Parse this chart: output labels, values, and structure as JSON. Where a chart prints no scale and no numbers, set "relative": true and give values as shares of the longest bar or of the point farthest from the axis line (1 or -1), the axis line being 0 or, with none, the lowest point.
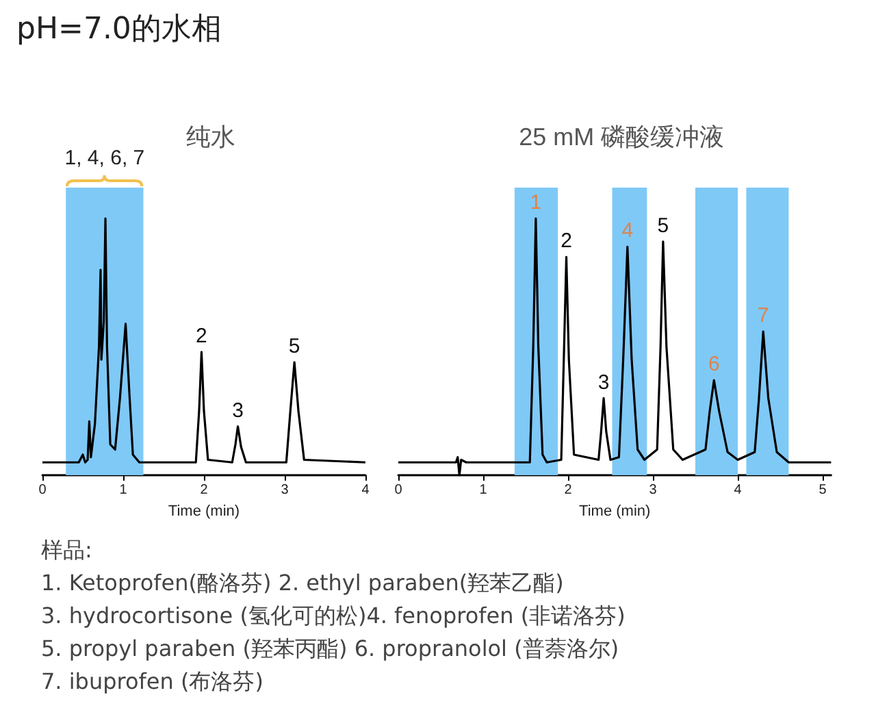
{
  "chart_data": [
    {
      "type": "other",
      "title": "pH=7.0的水相",
      "annotations": [
        "样品:",
        "1. Ketoprofen(酪洛芬) 2. ethyl paraben(羟苯乙酯)",
        "3. hydrocortisone (氢化可的松)4. fenoprofen (非诺洛芬)",
        "5. propyl paraben (羟苯丙酯) 6. propranolol (普萘洛尔)",
        "7. ibuprofen (布洛芬)"
      ]
    },
    {
      "type": "line",
      "title": "纯水",
      "xlabel": "Time (min)",
      "relative": true,
      "xlim": [
        0,
        4
      ],
      "xticks": [
        0,
        1,
        2,
        3,
        4
      ],
      "tick_labels": "x",
      "marker": "none",
      "series": [
        {
          "color": "#000000",
          "x": [
            0,
            0.45,
            0.5,
            0.53,
            0.56,
            0.58,
            0.6,
            0.65,
            0.7,
            0.72,
            0.73,
            0.76,
            0.78,
            0.8,
            0.84,
            0.9,
            0.96,
            1.03,
            1.08,
            1.12,
            1.2,
            1.9,
            1.94,
            1.97,
            2.0,
            2.05,
            2.35,
            2.39,
            2.42,
            2.46,
            2.52,
            3.02,
            3.07,
            3.12,
            3.17,
            3.24,
            4
          ],
          "values": [
            0.05,
            0.05,
            0.08,
            0.05,
            0.06,
            0.21,
            0.07,
            0.2,
            0.5,
            0.8,
            0.45,
            0.6,
            1.0,
            0.5,
            0.12,
            0.1,
            0.3,
            0.59,
            0.3,
            0.08,
            0.05,
            0.05,
            0.25,
            0.48,
            0.25,
            0.06,
            0.05,
            0.12,
            0.19,
            0.11,
            0.05,
            0.05,
            0.25,
            0.44,
            0.25,
            0.06,
            0.05
          ]
        }
      ],
      "bands": [
        {
          "axis": "x",
          "from": 0.29,
          "to": 1.25,
          "label": "1, 4, 6, 7",
          "color": "#7fc9f7"
        }
      ],
      "annotations": [
        {
          "text": "2",
          "x": 1.97,
          "y": 0.48
        },
        {
          "text": "3",
          "x": 2.42,
          "y": 0.19
        },
        {
          "text": "5",
          "x": 3.12,
          "y": 0.44
        }
      ]
    },
    {
      "type": "line",
      "title": "25 mM 磷酸缓冲液",
      "xlabel": "Time (min)",
      "relative": true,
      "xlim": [
        0,
        5.1
      ],
      "xticks": [
        0,
        1,
        2,
        3,
        4,
        5
      ],
      "tick_labels": "x",
      "marker": "none",
      "series": [
        {
          "color": "#000000",
          "x": [
            0,
            0.68,
            0.7,
            0.72,
            0.74,
            0.8,
            1.55,
            1.59,
            1.62,
            1.65,
            1.7,
            1.75,
            1.92,
            1.95,
            1.98,
            2.01,
            2.07,
            2.36,
            2.39,
            2.42,
            2.45,
            2.5,
            2.6,
            2.65,
            2.7,
            2.75,
            2.82,
            2.9,
            3.05,
            3.09,
            3.12,
            3.16,
            3.24,
            3.35,
            3.62,
            3.67,
            3.72,
            3.78,
            3.88,
            4.0,
            4.2,
            4.25,
            4.3,
            4.36,
            4.46,
            4.6,
            5.1
          ],
          "values": [
            0.05,
            0.05,
            0.07,
            0.0,
            0.06,
            0.05,
            0.05,
            0.5,
            1.0,
            0.5,
            0.08,
            0.05,
            0.06,
            0.45,
            0.85,
            0.45,
            0.08,
            0.06,
            0.17,
            0.3,
            0.17,
            0.06,
            0.07,
            0.45,
            0.89,
            0.45,
            0.1,
            0.06,
            0.1,
            0.5,
            0.91,
            0.5,
            0.1,
            0.06,
            0.1,
            0.25,
            0.37,
            0.25,
            0.09,
            0.06,
            0.09,
            0.3,
            0.56,
            0.3,
            0.09,
            0.05,
            0.05
          ]
        }
      ],
      "bands": [
        {
          "axis": "x",
          "from": 1.37,
          "to": 1.88,
          "color": "#7fc9f7"
        },
        {
          "axis": "x",
          "from": 2.52,
          "to": 2.93,
          "color": "#7fc9f7"
        },
        {
          "axis": "x",
          "from": 3.5,
          "to": 4.0,
          "color": "#7fc9f7"
        },
        {
          "axis": "x",
          "from": 4.1,
          "to": 4.6,
          "color": "#7fc9f7"
        }
      ],
      "annotations": [
        {
          "text": "1",
          "x": 1.62,
          "y": 1.0
        },
        {
          "text": "2",
          "x": 1.98,
          "y": 0.85
        },
        {
          "text": "3",
          "x": 2.42,
          "y": 0.3
        },
        {
          "text": "4",
          "x": 2.7,
          "y": 0.89
        },
        {
          "text": "5",
          "x": 3.12,
          "y": 0.91
        },
        {
          "text": "6",
          "x": 3.72,
          "y": 0.37
        },
        {
          "text": "7",
          "x": 4.3,
          "y": 0.56
        }
      ]
    }
  ]
}
